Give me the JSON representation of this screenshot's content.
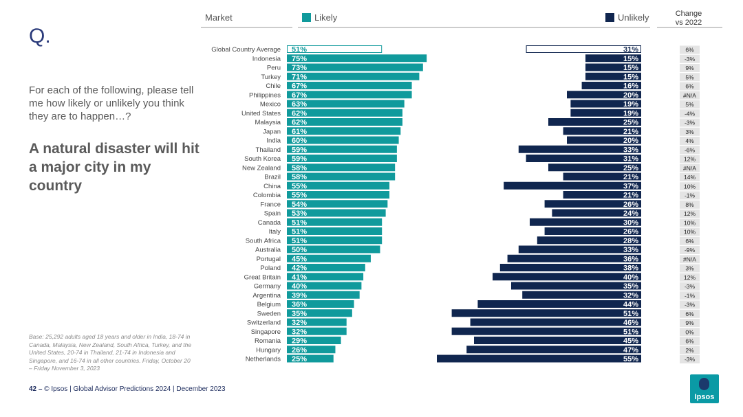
{
  "slide": {
    "q_mark": "Q.",
    "question": "For each of the following, please tell me how likely or unlikely you think they are to happen…?",
    "headline": "A natural disaster will hit a major city in my country",
    "base_note": "Base: 25,292 adults aged 18 years and older in India, 18-74 in Canada, Malaysia, New Zealand, South Africa, Turkey, and the United States, 20-74 in Thailand, 21-74 in Indonesia and Singapore, and 16-74 in all other countries. Friday, October 20 – Friday November 3, 2023",
    "footer_page": "42 –",
    "footer_text": "© Ipsos | Global Advisor Predictions 2024 | December 2023",
    "logo_text": "Ipsos"
  },
  "colors": {
    "likely": "#109a9c",
    "unlikely": "#10264f",
    "text": "#444444",
    "change_bg": "#e4e4e4"
  },
  "chart_data": {
    "type": "bar",
    "orientation": "horizontal",
    "headers": {
      "market": "Market",
      "likely": "Likely",
      "unlikely": "Unlikely",
      "change": "Change vs 2022"
    },
    "categories": [
      "Global Country Average",
      "Indonesia",
      "Peru",
      "Turkey",
      "Chile",
      "Philippines",
      "Mexico",
      "United States",
      "Malaysia",
      "Japan",
      "India",
      "Thailand",
      "South Korea",
      "New Zealand",
      "Brazil",
      "China",
      "Colombia",
      "France",
      "Spain",
      "Canada",
      "Italy",
      "South Africa",
      "Australia",
      "Portugal",
      "Poland",
      "Great Britain",
      "Germany",
      "Argentina",
      "Belgium",
      "Sweden",
      "Switzerland",
      "Singapore",
      "Romania",
      "Hungary",
      "Netherlands"
    ],
    "series": [
      {
        "name": "Likely",
        "values": [
          51,
          75,
          73,
          71,
          67,
          67,
          63,
          62,
          62,
          61,
          60,
          59,
          59,
          58,
          58,
          55,
          55,
          54,
          53,
          51,
          51,
          51,
          50,
          45,
          42,
          41,
          40,
          39,
          36,
          35,
          32,
          32,
          29,
          26,
          25
        ]
      },
      {
        "name": "Unlikely",
        "values": [
          31,
          15,
          15,
          15,
          16,
          20,
          19,
          19,
          25,
          21,
          20,
          33,
          31,
          25,
          21,
          37,
          21,
          26,
          24,
          30,
          26,
          28,
          33,
          36,
          38,
          40,
          35,
          32,
          44,
          51,
          46,
          51,
          45,
          47,
          55
        ]
      }
    ],
    "change_vs_2022": [
      "6%",
      "-3%",
      "9%",
      "5%",
      "6%",
      "#N/A",
      "5%",
      "-4%",
      "-3%",
      "3%",
      "4%",
      "-6%",
      "12%",
      "#N/A",
      "14%",
      "10%",
      "-1%",
      "8%",
      "12%",
      "10%",
      "10%",
      "6%",
      "-9%",
      "#N/A",
      "3%",
      "12%",
      "-3%",
      "-1%",
      "-3%",
      "6%",
      "9%",
      "0%",
      "6%",
      "2%",
      "-3%"
    ],
    "value_suffix": "%",
    "xlim": [
      0,
      100
    ]
  }
}
